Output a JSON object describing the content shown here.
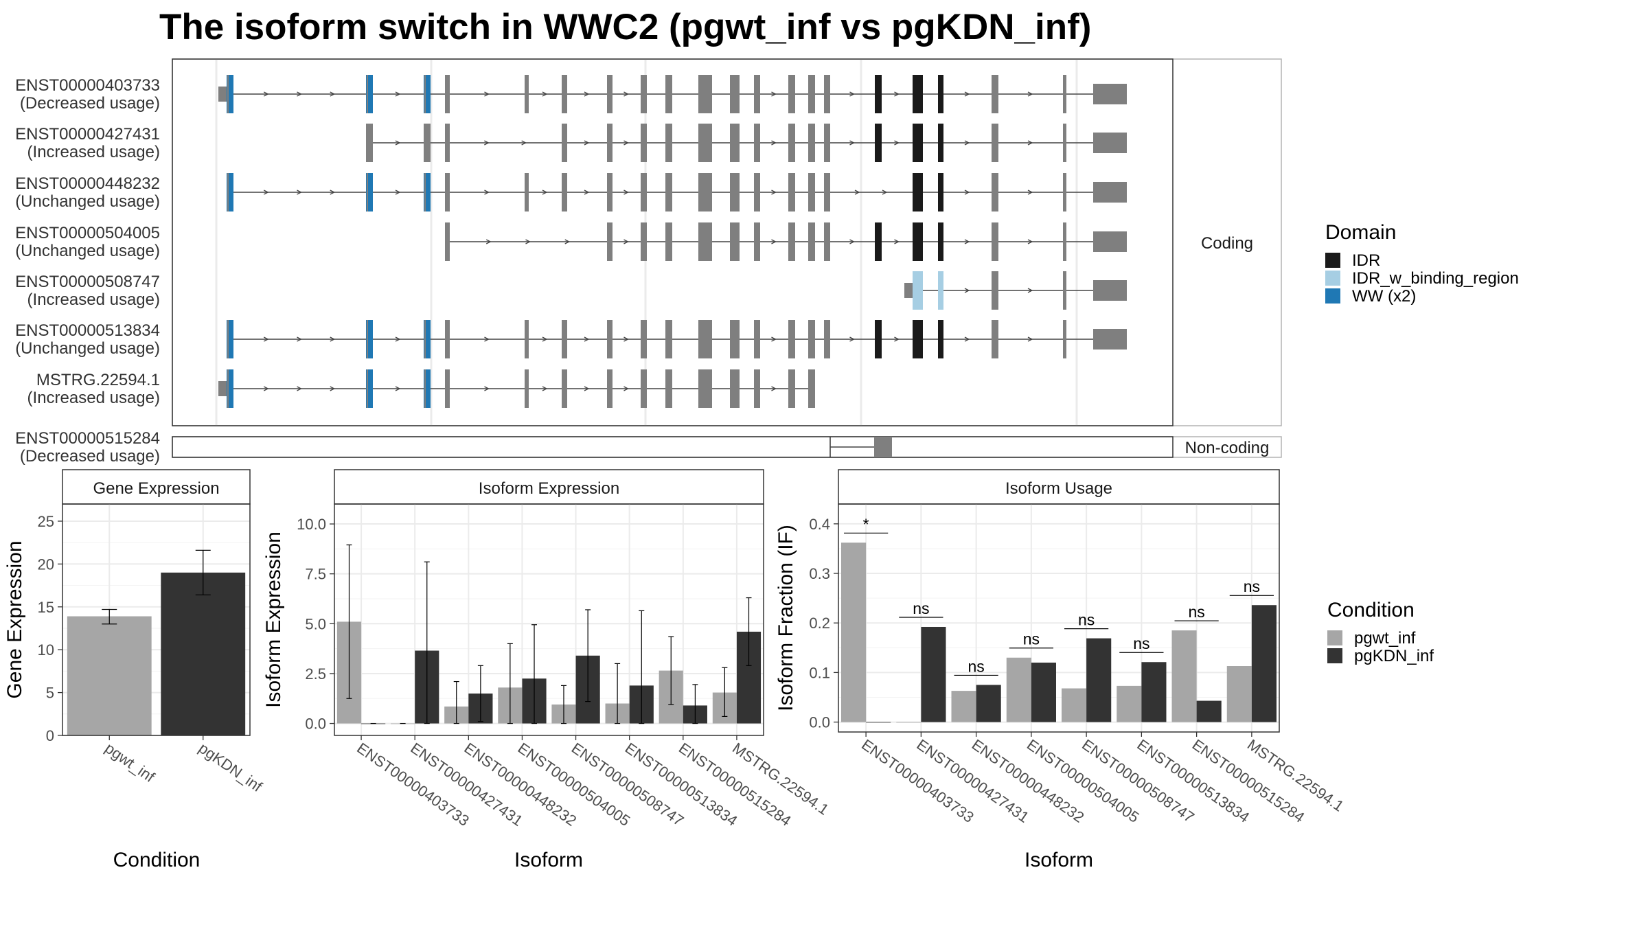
{
  "title": "The isoform switch in WWC2 (pgwt_inf vs pgKDN_inf)",
  "colors": {
    "exon": "#7f7f7f",
    "IDR": "#1a1a1a",
    "IDR_w_binding_region": "#a6cee3",
    "WW": "#1f78b4",
    "pgwt_inf": "#a6a6a6",
    "pgKDN_inf": "#333333"
  },
  "structure": {
    "coding_label": "Coding",
    "noncoding_label": "Non-coding",
    "coding_isoforms": [
      {
        "id": "ENST00000403733",
        "usage": "(Decreased usage)",
        "exons": [
          "A",
          "B",
          "C",
          "D",
          "E",
          "F",
          "G",
          "H",
          "I",
          "J",
          "K",
          "L",
          "M",
          "N",
          "O",
          "P",
          "Q",
          "R",
          "S",
          "T"
        ],
        "idr": [
          "P",
          "Q",
          "R"
        ],
        "ww": [
          "A",
          "B",
          "C"
        ],
        "utr5": true,
        "utr3": true
      },
      {
        "id": "ENST00000427431",
        "usage": "(Increased usage)",
        "exons": [
          "B",
          "C",
          "D",
          "F",
          "G",
          "H",
          "I",
          "J",
          "K",
          "L",
          "M",
          "N",
          "O",
          "P",
          "Q",
          "R",
          "S",
          "T"
        ],
        "idr": [
          "P",
          "Q",
          "R"
        ],
        "ww": [],
        "utr5": false,
        "utr3": true
      },
      {
        "id": "ENST00000448232",
        "usage": "(Unchanged usage)",
        "exons": [
          "A",
          "B",
          "C",
          "D",
          "E",
          "F",
          "G",
          "H",
          "I",
          "J",
          "K",
          "L",
          "M",
          "N",
          "O",
          "Q",
          "R",
          "S",
          "T"
        ],
        "idr": [
          "Q",
          "R"
        ],
        "ww": [
          "A",
          "B",
          "C"
        ],
        "utr5": false,
        "utr3": true
      },
      {
        "id": "ENST00000504005",
        "usage": "(Unchanged usage)",
        "exons": [
          "D",
          "G",
          "H",
          "I",
          "J",
          "K",
          "L",
          "M",
          "N",
          "O",
          "P",
          "Q",
          "R",
          "S",
          "T"
        ],
        "idr": [
          "P",
          "Q",
          "R"
        ],
        "ww": [],
        "utr5": false,
        "utr3": true
      },
      {
        "id": "ENST00000508747",
        "usage": "(Increased usage)",
        "exons": [
          "Q",
          "R",
          "S",
          "T"
        ],
        "idr": [],
        "idrb": [
          "Q",
          "R"
        ],
        "ww": [],
        "utr5": true,
        "utr3": true
      },
      {
        "id": "ENST00000513834",
        "usage": "(Unchanged usage)",
        "exons": [
          "A",
          "B",
          "C",
          "D",
          "E",
          "F",
          "G",
          "H",
          "I",
          "J",
          "K",
          "L",
          "M",
          "N",
          "O",
          "P",
          "Q",
          "R",
          "S",
          "T"
        ],
        "idr": [
          "P",
          "Q",
          "R"
        ],
        "ww": [
          "A",
          "B",
          "C"
        ],
        "utr5": false,
        "utr3": true
      },
      {
        "id": "MSTRG.22594.1",
        "usage": "(Increased usage)",
        "exons": [
          "A",
          "B",
          "C",
          "D",
          "E",
          "F",
          "G",
          "H",
          "I",
          "J",
          "K",
          "L",
          "M",
          "N"
        ],
        "idr": [],
        "ww": [
          "A",
          "B",
          "C"
        ],
        "utr5": true,
        "utr3": false
      }
    ],
    "noncoding_isoform": {
      "id": "ENST00000515284",
      "usage": "(Decreased usage)"
    }
  },
  "legend_domain": {
    "title": "Domain",
    "items": [
      "IDR",
      "IDR_w_binding_region",
      "WW (x2)"
    ]
  },
  "legend_condition": {
    "title": "Condition",
    "items": [
      "pgwt_inf",
      "pgKDN_inf"
    ]
  },
  "chart_data": [
    {
      "type": "bar",
      "title": "Gene Expression",
      "xlabel": "Condition",
      "ylabel": "Gene Expression",
      "categories": [
        "pgwt_inf",
        "pgKDN_inf"
      ],
      "values": [
        13.9,
        19.0
      ],
      "error_low": [
        13.0,
        16.4
      ],
      "error_high": [
        14.7,
        21.6
      ],
      "ylim": [
        0,
        27
      ],
      "yticks": [
        "0",
        "5",
        "10",
        "15",
        "20",
        "25"
      ]
    },
    {
      "type": "bar",
      "title": "Isoform Expression",
      "xlabel": "Isoform",
      "ylabel": "Isoform Expression",
      "categories": [
        "ENST00000403733",
        "ENST00000427431",
        "ENST00000448232",
        "ENST00000504005",
        "ENST00000508747",
        "ENST00000513834",
        "ENST00000515284",
        "MSTRG.22594.1"
      ],
      "series": [
        {
          "name": "pgwt_inf",
          "values": [
            5.1,
            0.0,
            0.85,
            1.8,
            0.95,
            1.0,
            2.65,
            1.55
          ],
          "error_low": [
            1.25,
            0.0,
            0.0,
            0.0,
            0.0,
            0.0,
            0.95,
            0.35
          ],
          "error_high": [
            8.95,
            0.0,
            2.1,
            4.0,
            1.9,
            3.0,
            4.35,
            2.8
          ]
        },
        {
          "name": "pgKDN_inf",
          "values": [
            0.0,
            3.65,
            1.5,
            2.25,
            3.4,
            1.9,
            0.9,
            4.6
          ],
          "error_low": [
            0.0,
            0.0,
            0.1,
            0.0,
            1.1,
            0.0,
            0.0,
            2.9
          ],
          "error_high": [
            0.0,
            8.1,
            2.9,
            4.95,
            5.7,
            5.65,
            1.95,
            6.3
          ]
        }
      ],
      "ylim": [
        -0.6,
        11
      ],
      "yticks": [
        "0.0",
        "2.5",
        "5.0",
        "7.5",
        "10.0"
      ]
    },
    {
      "type": "bar",
      "title": "Isoform Usage",
      "xlabel": "Isoform",
      "ylabel": "Isoform Fraction (IF)",
      "categories": [
        "ENST00000403733",
        "ENST00000427431",
        "ENST00000448232",
        "ENST00000504005",
        "ENST00000508747",
        "ENST00000513834",
        "ENST00000515284",
        "MSTRG.22594.1"
      ],
      "series": [
        {
          "name": "pgwt_inf",
          "values": [
            0.362,
            0.0,
            0.063,
            0.13,
            0.068,
            0.073,
            0.185,
            0.113
          ]
        },
        {
          "name": "pgKDN_inf",
          "values": [
            0.0,
            0.192,
            0.075,
            0.12,
            0.169,
            0.121,
            0.043,
            0.236
          ]
        }
      ],
      "significance": [
        "*",
        "ns",
        "ns",
        "ns",
        "ns",
        "ns",
        "ns",
        "ns"
      ],
      "ylim": [
        -0.02,
        0.44
      ],
      "yticks": [
        "0.0",
        "0.1",
        "0.2",
        "0.3",
        "0.4"
      ]
    }
  ]
}
